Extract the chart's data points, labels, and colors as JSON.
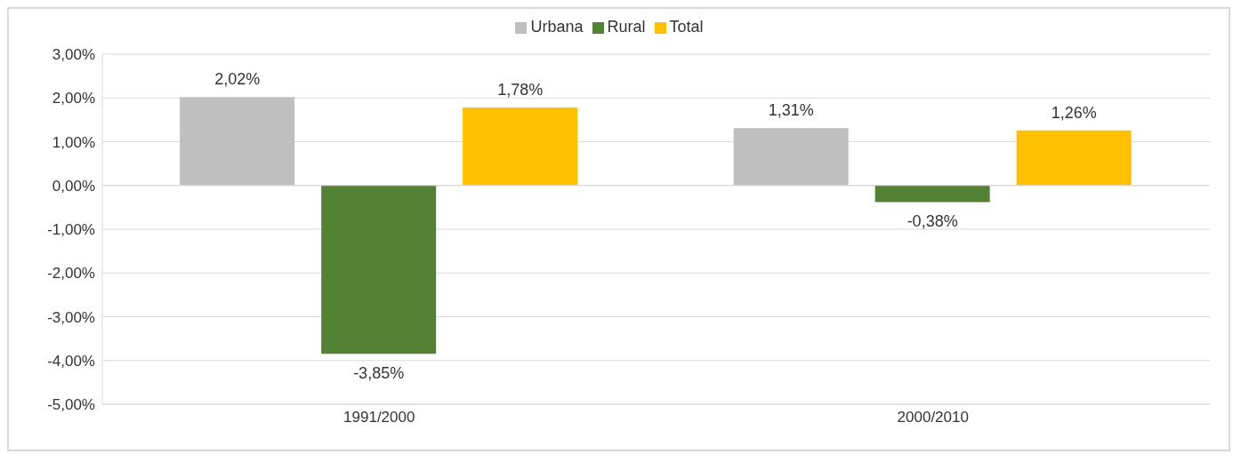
{
  "chart_data": {
    "type": "bar",
    "categories": [
      "1991/2000",
      "2000/2010"
    ],
    "series": [
      {
        "name": "Urbana",
        "color": "#bfbfbf",
        "values": [
          2.02,
          1.31
        ],
        "value_labels": [
          "2,02%",
          "1,31%"
        ]
      },
      {
        "name": "Rural",
        "color": "#548235",
        "values": [
          -3.85,
          -0.38
        ],
        "value_labels": [
          "-3,85%",
          "-0,38%"
        ]
      },
      {
        "name": "Total",
        "color": "#ffc000",
        "values": [
          1.78,
          1.26
        ],
        "value_labels": [
          "1,78%",
          "1,26%"
        ]
      }
    ],
    "ylim": [
      -5,
      3
    ],
    "yticks": [
      {
        "value": -5,
        "label": "-5,00%"
      },
      {
        "value": -4,
        "label": "-4,00%"
      },
      {
        "value": -3,
        "label": "-3,00%"
      },
      {
        "value": -2,
        "label": "-2,00%"
      },
      {
        "value": -1,
        "label": "-1,00%"
      },
      {
        "value": 0,
        "label": "0,00%"
      },
      {
        "value": 1,
        "label": "1,00%"
      },
      {
        "value": 2,
        "label": "2,00%"
      },
      {
        "value": 3,
        "label": "3,00%"
      }
    ],
    "grid": "y",
    "legend": "top"
  }
}
